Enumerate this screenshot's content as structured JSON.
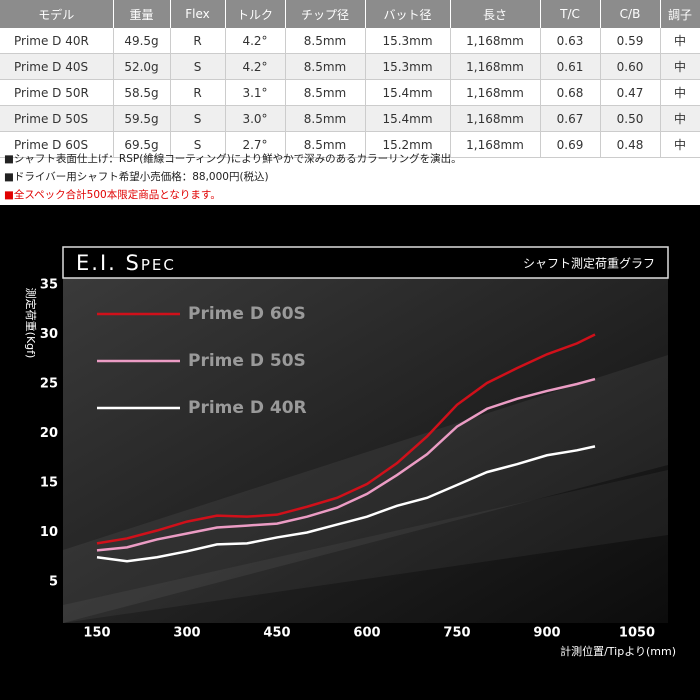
{
  "table": {
    "header": [
      "モデル",
      "重量",
      "Flex",
      "トルク",
      "チップ径",
      "バット径",
      "長さ",
      "T/C",
      "C/B",
      "調子"
    ],
    "rows": [
      [
        "Prime D 40R",
        "49.5g",
        "R",
        "4.2°",
        "8.5mm",
        "15.3mm",
        "1,168mm",
        "0.63",
        "0.59",
        "中"
      ],
      [
        "Prime D 40S",
        "52.0g",
        "S",
        "4.2°",
        "8.5mm",
        "15.3mm",
        "1,168mm",
        "0.61",
        "0.60",
        "中"
      ],
      [
        "Prime D 50R",
        "58.5g",
        "R",
        "3.1°",
        "8.5mm",
        "15.4mm",
        "1,168mm",
        "0.68",
        "0.47",
        "中"
      ],
      [
        "Prime D 50S",
        "59.5g",
        "S",
        "3.0°",
        "8.5mm",
        "15.4mm",
        "1,168mm",
        "0.67",
        "0.50",
        "中"
      ],
      [
        "Prime D 60S",
        "69.5g",
        "S",
        "2.7°",
        "8.5mm",
        "15.2mm",
        "1,168mm",
        "0.69",
        "0.48",
        "中"
      ]
    ]
  },
  "notes": [
    "■シャフト表面仕上げ：RSP(維線コーティング)により鮮やかで深みのあるカラーリングを演出。",
    "■ドライバー用シャフト希望小売価格：88,000円(税込)",
    "■全スペック合計500本限定商品となります。"
  ],
  "chart_data": {
    "type": "line",
    "title": "E.I. Spec",
    "subtitle": "シャフト測定荷重グラフ",
    "y_label": "測定荷重(Kgf)",
    "x_label": "計測位置/Tipより(mm)",
    "x": [
      150,
      200,
      250,
      300,
      350,
      400,
      450,
      500,
      550,
      600,
      650,
      700,
      750,
      800,
      850,
      900,
      950,
      980
    ],
    "series": [
      {
        "name": "Prime D 60S",
        "color": "#d0101a",
        "values": [
          8.9,
          9.4,
          10.2,
          11.1,
          11.7,
          11.6,
          11.8,
          12.6,
          13.5,
          14.9,
          17.0,
          19.7,
          22.9,
          25.1,
          26.6,
          28.0,
          29.1,
          30.0
        ]
      },
      {
        "name": "Prime D 50S",
        "color": "#eb9cc4",
        "values": [
          8.2,
          8.5,
          9.3,
          9.9,
          10.5,
          10.7,
          10.9,
          11.6,
          12.5,
          13.9,
          15.8,
          17.9,
          20.7,
          22.5,
          23.5,
          24.3,
          25.0,
          25.5
        ]
      },
      {
        "name": "Prime D 40R",
        "color": "#ffffff",
        "values": [
          7.5,
          7.1,
          7.5,
          8.1,
          8.8,
          8.9,
          9.5,
          10.0,
          10.8,
          11.6,
          12.7,
          13.5,
          14.8,
          16.1,
          16.9,
          17.8,
          18.3,
          18.7
        ]
      }
    ],
    "xlim": [
      150,
      1050
    ],
    "ylim": [
      5,
      35
    ],
    "xticks": [
      150,
      300,
      450,
      600,
      750,
      900,
      1050
    ],
    "yticks": [
      5,
      10,
      15,
      20,
      25,
      30,
      35
    ]
  }
}
